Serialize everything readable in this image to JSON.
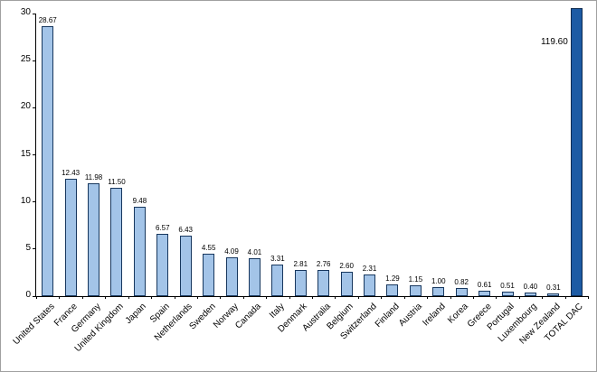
{
  "chart_data": {
    "type": "bar",
    "categories": [
      "United States",
      "France",
      "Germany",
      "United Kingdom",
      "Japan",
      "Spain",
      "Netherlands",
      "Sweden",
      "Norway",
      "Canada",
      "Italy",
      "Denmark",
      "Australia",
      "Belgium",
      "Switzerland",
      "Finland",
      "Austria",
      "Ireland",
      "Korea",
      "Greece",
      "Portugal",
      "Luxembourg",
      "New Zealand",
      "TOTAL DAC"
    ],
    "values": [
      28.67,
      12.43,
      11.98,
      11.5,
      9.48,
      6.57,
      6.43,
      4.55,
      4.09,
      4.01,
      3.31,
      2.81,
      2.76,
      2.6,
      2.31,
      1.29,
      1.15,
      1.0,
      0.82,
      0.61,
      0.51,
      0.4,
      0.31,
      119.6
    ],
    "labels": [
      "28.67",
      "12.43",
      "11.98",
      "11.50",
      "9.48",
      "6.57",
      "6.43",
      "4.55",
      "4.09",
      "4.01",
      "3.31",
      "2.81",
      "2.76",
      "2.60",
      "2.31",
      "1.29",
      "1.15",
      "1.00",
      "0.82",
      "0.61",
      "0.51",
      "0.40",
      "0.31",
      "119.60"
    ],
    "title": "",
    "xlabel": "",
    "ylabel": "",
    "ylim": [
      0,
      30
    ],
    "yticks": [
      0,
      5,
      10,
      15,
      20,
      25,
      30
    ],
    "grid": false,
    "legend_position": "none",
    "bar_color": "#a3c4e8",
    "bar_border_color": "#17375e",
    "total_bar_color": "#1d5ba4",
    "axis_color": "#000000"
  }
}
